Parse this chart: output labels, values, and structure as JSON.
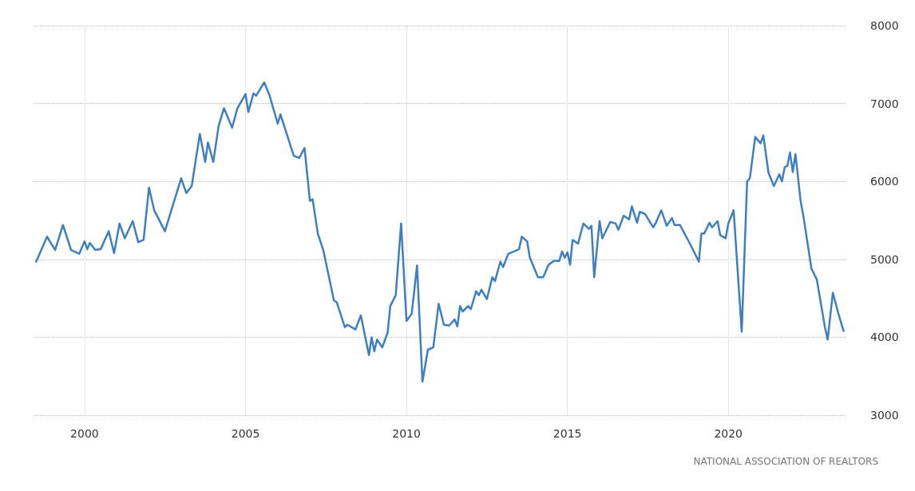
{
  "chart_data": {
    "type": "line",
    "x": [
      "1998-07",
      "1998-11",
      "1999-02",
      "1999-05",
      "1999-08",
      "1999-11",
      "2000-01",
      "2000-02",
      "2000-03",
      "2000-05",
      "2000-07",
      "2000-10",
      "2000-12",
      "2001-02",
      "2001-04",
      "2001-07",
      "2001-09",
      "2001-11",
      "2002-01",
      "2002-03",
      "2002-07",
      "2002-10",
      "2003-01",
      "2003-03",
      "2003-05",
      "2003-08",
      "2003-10",
      "2003-11",
      "2004-01",
      "2004-03",
      "2004-05",
      "2004-08",
      "2004-10",
      "2005-01",
      "2005-02",
      "2005-04",
      "2005-05",
      "2005-08",
      "2005-10",
      "2006-01",
      "2006-02",
      "2006-07",
      "2006-09",
      "2006-11",
      "2007-01",
      "2007-02",
      "2007-04",
      "2007-06",
      "2007-10",
      "2007-11",
      "2008-02",
      "2008-03",
      "2008-06",
      "2008-08",
      "2008-11",
      "2008-12",
      "2009-01",
      "2009-02",
      "2009-04",
      "2009-06",
      "2009-07",
      "2009-09",
      "2009-11",
      "2010-01",
      "2010-03",
      "2010-05",
      "2010-07",
      "2010-09",
      "2010-11",
      "2011-01",
      "2011-03",
      "2011-05",
      "2011-07",
      "2011-08",
      "2011-09",
      "2011-10",
      "2011-12",
      "2012-01",
      "2012-03",
      "2012-04",
      "2012-05",
      "2012-07",
      "2012-09",
      "2012-10",
      "2012-12",
      "2013-01",
      "2013-03",
      "2013-05",
      "2013-07",
      "2013-08",
      "2013-10",
      "2013-11",
      "2014-02",
      "2014-04",
      "2014-06",
      "2014-08",
      "2014-10",
      "2014-11",
      "2014-12",
      "2015-01",
      "2015-02",
      "2015-03",
      "2015-05",
      "2015-07",
      "2015-09",
      "2015-10",
      "2015-11",
      "2016-01",
      "2016-02",
      "2016-05",
      "2016-07",
      "2016-08",
      "2016-10",
      "2016-12",
      "2017-01",
      "2017-03",
      "2017-04",
      "2017-06",
      "2017-09",
      "2017-10",
      "2017-12",
      "2018-02",
      "2018-04",
      "2018-05",
      "2018-07",
      "2018-11",
      "2019-02",
      "2019-03",
      "2019-04",
      "2019-06",
      "2019-07",
      "2019-09",
      "2019-10",
      "2019-12",
      "2020-01",
      "2020-03",
      "2020-06",
      "2020-08",
      "2020-09",
      "2020-11",
      "2021-01",
      "2021-02",
      "2021-04",
      "2021-06",
      "2021-08",
      "2021-09",
      "2021-10",
      "2021-11",
      "2021-12",
      "2022-01",
      "2022-02",
      "2022-04",
      "2022-05",
      "2022-08",
      "2022-10",
      "2023-01",
      "2023-02",
      "2023-04",
      "2023-06",
      "2023-08"
    ],
    "series": [
      {
        "color": "#3f7fbf",
        "values": [
          4970,
          5290,
          5120,
          5440,
          5120,
          5070,
          5230,
          5130,
          5210,
          5120,
          5130,
          5360,
          5080,
          5460,
          5270,
          5490,
          5220,
          5250,
          5920,
          5630,
          5360,
          5700,
          6040,
          5850,
          5940,
          6610,
          6250,
          6500,
          6250,
          6710,
          6940,
          6690,
          6940,
          7120,
          6890,
          7130,
          7100,
          7270,
          7100,
          6740,
          6860,
          6330,
          6300,
          6430,
          5750,
          5770,
          5330,
          5120,
          4470,
          4450,
          4130,
          4160,
          4100,
          4280,
          3770,
          4000,
          3820,
          3970,
          3870,
          4060,
          4400,
          4540,
          5460,
          4210,
          4300,
          4920,
          3430,
          3840,
          3870,
          4430,
          4160,
          4150,
          4230,
          4140,
          4400,
          4330,
          4400,
          4360,
          4590,
          4540,
          4610,
          4490,
          4770,
          4720,
          4970,
          4900,
          5070,
          5100,
          5130,
          5290,
          5230,
          5020,
          4770,
          4770,
          4930,
          4980,
          4980,
          5100,
          5020,
          5090,
          4930,
          5250,
          5200,
          5460,
          5390,
          5430,
          4770,
          5490,
          5270,
          5480,
          5460,
          5380,
          5560,
          5510,
          5680,
          5470,
          5610,
          5580,
          5410,
          5470,
          5630,
          5430,
          5530,
          5440,
          5440,
          5180,
          4970,
          5330,
          5330,
          5470,
          5410,
          5490,
          5310,
          5270,
          5460,
          5630,
          4070,
          6000,
          6040,
          6570,
          6490,
          6590,
          6110,
          5940,
          6090,
          6000,
          6180,
          6200,
          6370,
          6120,
          6350,
          5740,
          5560,
          4880,
          4740,
          4130,
          3970,
          4570,
          4310,
          4080
        ]
      }
    ],
    "xlim": [
      "1998-06",
      "2023-09"
    ],
    "xticks": [
      {
        "value": "2000",
        "label": "2000"
      },
      {
        "value": "2005",
        "label": "2005"
      },
      {
        "value": "2010",
        "label": "2010"
      },
      {
        "value": "2015",
        "label": "2015"
      },
      {
        "value": "2020",
        "label": "2020"
      }
    ],
    "ylim": [
      3000,
      8000
    ],
    "yticks": [
      3000,
      4000,
      5000,
      6000,
      7000,
      8000
    ],
    "grid": true,
    "marker": "none",
    "line_style": "solid",
    "annotations": [
      "NATIONAL ASSOCIATION OF REALTORS"
    ]
  }
}
